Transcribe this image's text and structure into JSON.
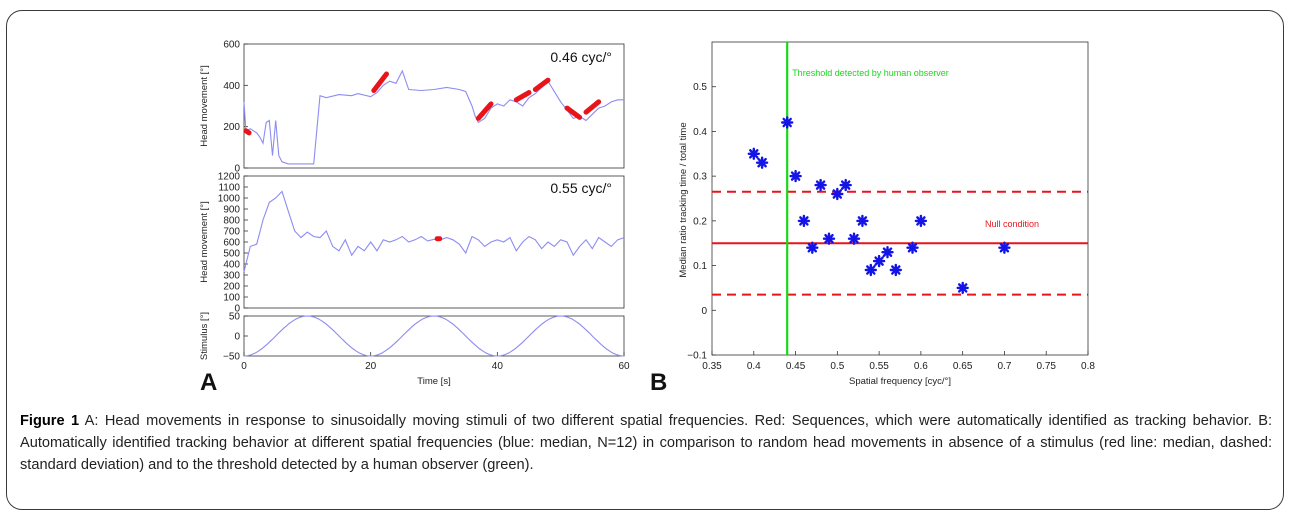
{
  "figure": {
    "panel_a_letter": "A",
    "panel_b_letter": "B",
    "caption_label": "Figure 1",
    "caption_text": " A: Head movements in response to sinusoidally moving stimuli of two different spatial frequencies. Red: Sequences, which were automatically identified as tracking behavior. B: Automatically identified tracking behavior at different spatial frequencies (blue: median, N=12) in comparison to random head movements in absence of a stimulus (red line: median, dashed: standard deviation) and to the threshold detected by a human observer (green)."
  },
  "chart_data": [
    {
      "type": "line",
      "panel": "A-top",
      "annotation": "0.46 cyc/°",
      "ylabel": "Head movement [°]",
      "xlim": [
        0,
        60
      ],
      "ylim": [
        0,
        600
      ],
      "yticks": [
        "0",
        "200",
        "400",
        "600"
      ],
      "series_color": "#8c8cf2",
      "highlight_color": "#e8141a",
      "x": [
        0,
        0.3,
        1,
        2,
        2.5,
        3,
        3.5,
        4,
        4.5,
        5,
        5.5,
        6,
        7,
        8,
        10,
        11,
        12,
        13,
        15,
        17,
        18,
        20,
        21,
        22,
        23,
        24,
        25,
        26,
        28,
        30,
        32,
        34,
        35,
        36,
        36.5,
        37,
        38,
        39,
        40,
        41,
        42,
        43,
        44,
        45,
        46,
        47,
        48,
        50,
        51,
        52,
        53,
        54,
        55,
        56,
        57,
        58,
        59,
        60
      ],
      "y": [
        320,
        180,
        190,
        170,
        150,
        120,
        220,
        230,
        60,
        230,
        60,
        30,
        20,
        20,
        20,
        20,
        350,
        340,
        355,
        350,
        360,
        345,
        365,
        400,
        420,
        410,
        470,
        380,
        375,
        380,
        390,
        380,
        370,
        300,
        250,
        220,
        240,
        290,
        310,
        300,
        330,
        320,
        300,
        340,
        360,
        390,
        420,
        320,
        280,
        240,
        250,
        230,
        260,
        290,
        300,
        320,
        330,
        330
      ],
      "highlights": [
        [
          [
            0.3,
            0.8
          ],
          [
            180,
            170
          ]
        ],
        [
          [
            20.5,
            22.5
          ],
          [
            375,
            455
          ]
        ],
        [
          [
            37,
            39
          ],
          [
            240,
            310
          ]
        ],
        [
          [
            43,
            45
          ],
          [
            330,
            365
          ]
        ],
        [
          [
            46,
            48
          ],
          [
            380,
            425
          ]
        ],
        [
          [
            51,
            53
          ],
          [
            290,
            245
          ]
        ],
        [
          [
            54,
            56
          ],
          [
            270,
            320
          ]
        ]
      ]
    },
    {
      "type": "line",
      "panel": "A-middle",
      "annotation": "0.55 cyc/°",
      "ylabel": "Head movement [°]",
      "xlim": [
        0,
        60
      ],
      "ylim": [
        0,
        1200
      ],
      "yticks": [
        "0",
        "100",
        "200",
        "300",
        "400",
        "500",
        "600",
        "700",
        "800",
        "900",
        "1000",
        "1100",
        "1200"
      ],
      "series_color": "#8c8cf2",
      "highlight_color": "#e8141a",
      "x": [
        0,
        1,
        2,
        3,
        4,
        5,
        6,
        7,
        8,
        9,
        10,
        11,
        12,
        13,
        14,
        15,
        16,
        17,
        18,
        19,
        20,
        21,
        22,
        23,
        24,
        25,
        26,
        27,
        28,
        29,
        30,
        31,
        32,
        33,
        34,
        35,
        36,
        37,
        38,
        39,
        40,
        41,
        42,
        43,
        44,
        45,
        46,
        47,
        48,
        49,
        50,
        51,
        52,
        53,
        54,
        55,
        56,
        57,
        58,
        59,
        60
      ],
      "y": [
        330,
        560,
        580,
        800,
        960,
        1000,
        1060,
        880,
        700,
        640,
        690,
        650,
        640,
        700,
        560,
        520,
        620,
        480,
        560,
        520,
        600,
        520,
        620,
        600,
        620,
        650,
        600,
        620,
        650,
        610,
        625,
        620,
        640,
        620,
        580,
        500,
        650,
        620,
        560,
        600,
        620,
        600,
        640,
        520,
        600,
        650,
        620,
        540,
        600,
        560,
        620,
        600,
        480,
        560,
        620,
        540,
        640,
        600,
        560,
        620,
        640
      ],
      "highlights": [
        [
          [
            30.5,
            30.9
          ],
          [
            630,
            630
          ]
        ]
      ]
    },
    {
      "type": "line",
      "panel": "A-bottom",
      "ylabel": "Stimulus [°]",
      "xlabel": "Time [s]",
      "xlim": [
        0,
        60
      ],
      "xticks": [
        "0",
        "20",
        "40",
        "60"
      ],
      "ylim": [
        -50,
        50
      ],
      "yticks": [
        "50",
        "0",
        "−50"
      ],
      "series_color": "#8c8cf2",
      "amplitude": 50,
      "period_s": 20,
      "phase_s": 0
    },
    {
      "type": "scatter",
      "panel": "B",
      "xlabel": "Spatial frequency [cyc/°]",
      "ylabel": "Median ratio tracking time / total time",
      "xlim": [
        0.35,
        0.8
      ],
      "ylim": [
        -0.1,
        0.6
      ],
      "xticks": [
        "0.35",
        "0.4",
        "0.45",
        "0.5",
        "0.55",
        "0.6",
        "0.65",
        "0.7",
        "0.75",
        "0.8"
      ],
      "yticks": [
        "−0.1",
        "0",
        "0.1",
        "0.2",
        "0.3",
        "0.4",
        "0.5"
      ],
      "points": [
        [
          0.4,
          0.35
        ],
        [
          0.41,
          0.33
        ],
        [
          0.44,
          0.42
        ],
        [
          0.45,
          0.3
        ],
        [
          0.46,
          0.2
        ],
        [
          0.47,
          0.14
        ],
        [
          0.48,
          0.28
        ],
        [
          0.49,
          0.16
        ],
        [
          0.5,
          0.26
        ],
        [
          0.51,
          0.28
        ],
        [
          0.52,
          0.16
        ],
        [
          0.53,
          0.2
        ],
        [
          0.54,
          0.09
        ],
        [
          0.55,
          0.11
        ],
        [
          0.56,
          0.13
        ],
        [
          0.57,
          0.09
        ],
        [
          0.59,
          0.14
        ],
        [
          0.6,
          0.2
        ],
        [
          0.65,
          0.05
        ],
        [
          0.7,
          0.14
        ]
      ],
      "point_color": "#1414e6",
      "threshold_x": 0.44,
      "threshold_color": "#16d916",
      "threshold_label": "Threshold detected by human observer",
      "null_median": 0.15,
      "null_upper": 0.265,
      "null_lower": 0.035,
      "null_color": "#e8141a",
      "null_label": "Null condition"
    }
  ]
}
